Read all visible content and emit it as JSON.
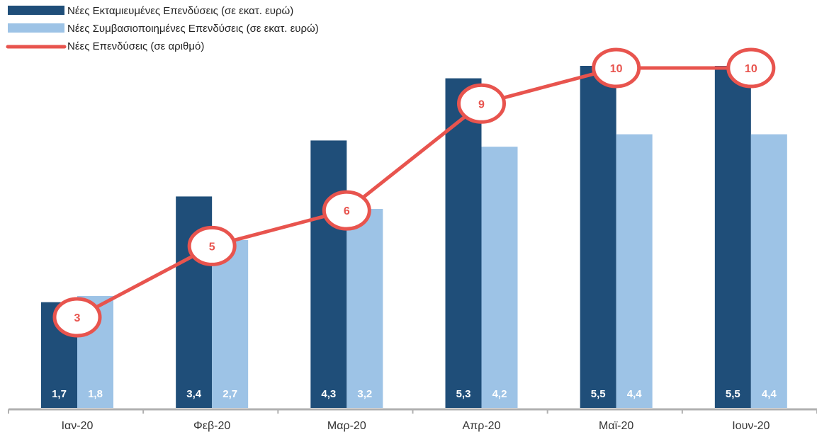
{
  "chart_data": {
    "type": "bar",
    "categories": [
      "Ιαν-20",
      "Φεβ-20",
      "Μαρ-20",
      "Απρ-20",
      "Μαϊ-20",
      "Ιουν-20"
    ],
    "series": [
      {
        "name": "Νέες Εκταμιευμένες Επενδύσεις (σε εκατ. ευρώ)",
        "type": "bar",
        "color": "#1f4e79",
        "values": [
          1.7,
          3.4,
          4.3,
          5.3,
          5.5,
          5.5
        ],
        "labels": [
          "1,7",
          "3,4",
          "4,3",
          "5,3",
          "5,5",
          "5,5"
        ],
        "label_color": "#ffffff"
      },
      {
        "name": "Νέες Συμβασιοποιημένες Επενδύσεις (σε εκατ. ευρώ)",
        "type": "bar",
        "color": "#9dc3e6",
        "values": [
          1.8,
          2.7,
          3.2,
          4.2,
          4.4,
          4.4
        ],
        "labels": [
          "1,8",
          "2,7",
          "3,2",
          "4,2",
          "4,4",
          "4,4"
        ],
        "label_color": "#ffffff"
      },
      {
        "name": "Νέες Επενδύσεις (σε αριθμό)",
        "type": "line",
        "axis": "secondary",
        "color": "#e8544e",
        "values": [
          3,
          5,
          6,
          9,
          10,
          10
        ],
        "labels": [
          "3",
          "5",
          "6",
          "9",
          "10",
          "10"
        ]
      }
    ],
    "ylim": [
      0,
      5.5
    ],
    "ylim_secondary": [
      0,
      10
    ],
    "grid": false,
    "legend_position": "top-left",
    "title": "",
    "xlabel": "",
    "ylabel": ""
  }
}
